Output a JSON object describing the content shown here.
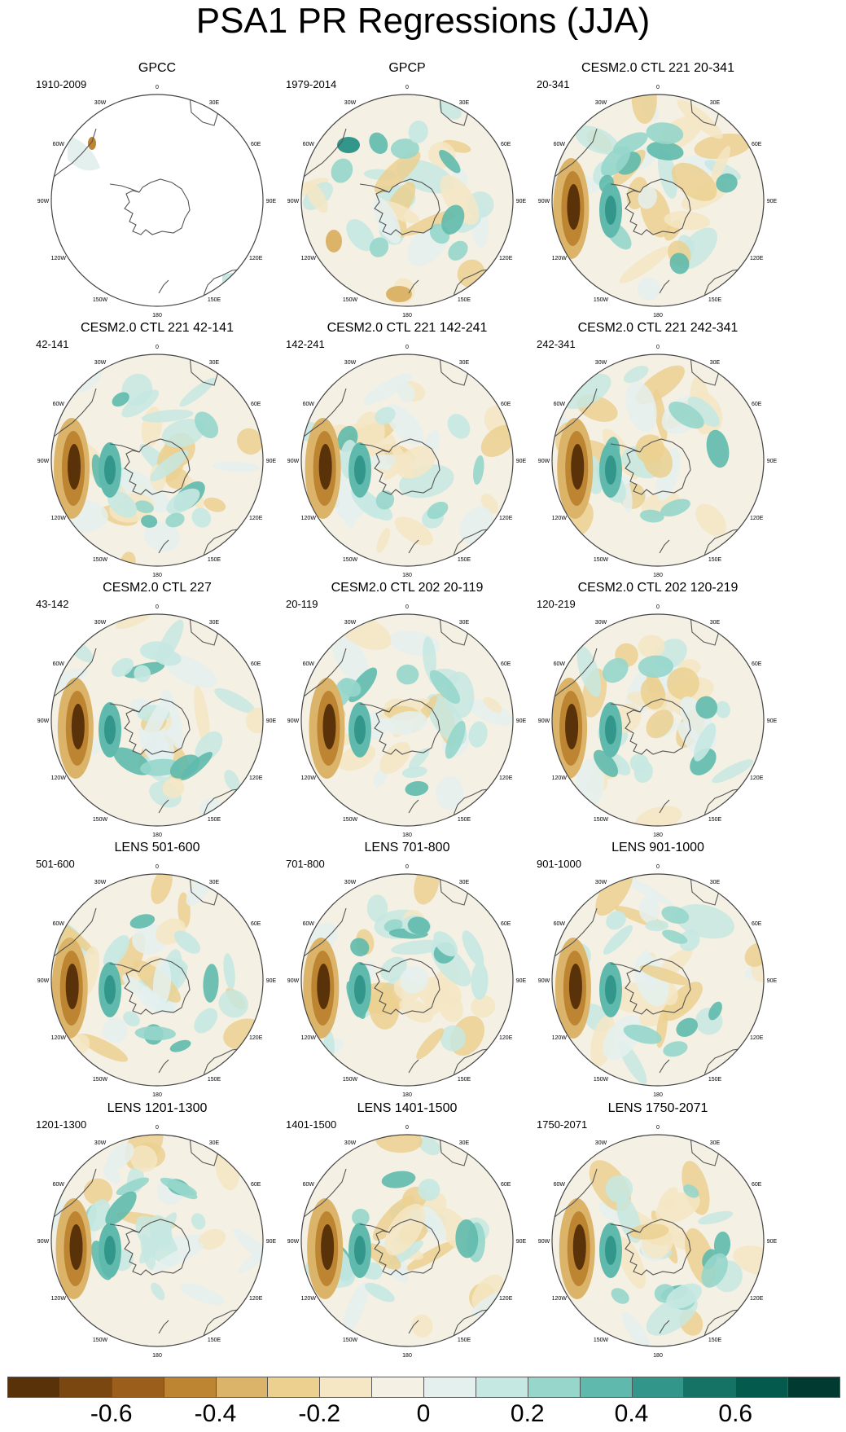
{
  "title": "PSA1 PR Regressions (JJA)",
  "panels": [
    {
      "title": "GPCC",
      "period": "1910-2009",
      "kind": "obs_sparse"
    },
    {
      "title": "GPCP",
      "period": "1979-2014",
      "kind": "obs"
    },
    {
      "title": "CESM2.0 CTL 221 20-341",
      "period": "20-341",
      "kind": "model"
    },
    {
      "title": "CESM2.0 CTL 221 42-141",
      "period": "42-141",
      "kind": "model"
    },
    {
      "title": "CESM2.0 CTL 221 142-241",
      "period": "142-241",
      "kind": "model"
    },
    {
      "title": "CESM2.0 CTL 221 242-341",
      "period": "242-341",
      "kind": "model"
    },
    {
      "title": "CESM2.0 CTL 227",
      "period": "43-142",
      "kind": "model"
    },
    {
      "title": "CESM2.0 CTL 202 20-119",
      "period": "20-119",
      "kind": "model"
    },
    {
      "title": "CESM2.0 CTL 202 120-219",
      "period": "120-219",
      "kind": "model"
    },
    {
      "title": "LENS 501-600",
      "period": "501-600",
      "kind": "model"
    },
    {
      "title": "LENS 701-800",
      "period": "701-800",
      "kind": "model"
    },
    {
      "title": "LENS 901-1000",
      "period": "901-1000",
      "kind": "model"
    },
    {
      "title": "LENS 1201-1300",
      "period": "1201-1300",
      "kind": "model"
    },
    {
      "title": "LENS 1401-1500",
      "period": "1401-1500",
      "kind": "model"
    },
    {
      "title": "LENS 1750-2071",
      "period": "1750-2071",
      "kind": "model"
    }
  ],
  "lon_labels": [
    "0",
    "30E",
    "60E",
    "90E",
    "120E",
    "150E",
    "180",
    "150W",
    "120W",
    "90W",
    "60W",
    "30W"
  ],
  "colorbar": {
    "colors": [
      "#5a320a",
      "#7b4711",
      "#9b5f1b",
      "#bd8432",
      "#dcb469",
      "#ebd090",
      "#f5e6c4",
      "#f4f0e4",
      "#e4f0ee",
      "#c6e8e2",
      "#96d6cb",
      "#5fbaad",
      "#33968a",
      "#157365",
      "#045a4c",
      "#003a30"
    ],
    "ticks": [
      "-0.6",
      "-0.4",
      "-0.2",
      "0",
      "0.2",
      "0.4",
      "0.6"
    ]
  }
}
